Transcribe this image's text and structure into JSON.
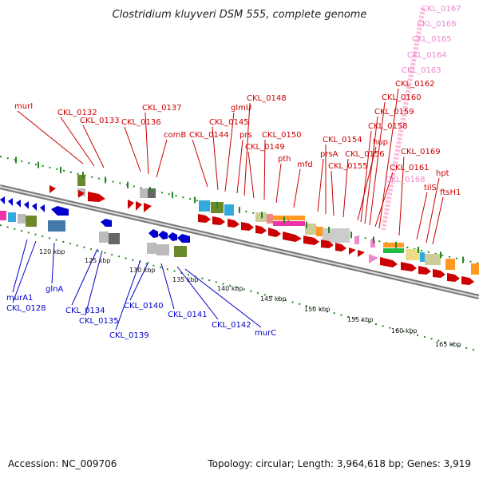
{
  "header": {
    "title": "Clostridium kluyveri DSM 555, complete genome"
  },
  "footer": {
    "accession": "Accession: NC_009706",
    "summary": "Topology: circular; Length: 3,964,618 bp; Genes: 3,919"
  },
  "colors": {
    "forward": "#cc0000",
    "reverse": "#0000cc",
    "rna": "#ee88cc",
    "backbone": "#777777",
    "ticks": "#228822"
  },
  "ruler": {
    "unit": "kbp",
    "ticks": [
      {
        "label": "120 kbp"
      },
      {
        "label": "125 kbp"
      },
      {
        "label": "130 kbp"
      },
      {
        "label": "135 kbp"
      },
      {
        "label": "140 kbp"
      },
      {
        "label": "145 kbp"
      },
      {
        "label": "150 kbp"
      },
      {
        "label": "155 kbp"
      },
      {
        "label": "160 kbp"
      },
      {
        "label": "165 kbp"
      }
    ]
  },
  "labels": {
    "forward": [
      "murI",
      "CKL_0132",
      "CKL_0133",
      "CKL_0136",
      "CKL_0137",
      "comB",
      "CKL_0144",
      "CKL_0145",
      "glmU",
      "prs",
      "CKL_0148",
      "CKL_0149",
      "CKL_0150",
      "pth",
      "mfd",
      "prsA",
      "CKL_0154",
      "CKL_0155",
      "CKL_0156",
      "hup",
      "CKL_0158",
      "CKL_0159",
      "CKL_0160",
      "CKL_0161",
      "CKL_0162",
      "CKL_0169",
      "tilS",
      "hpt",
      "ftsH1"
    ],
    "rna": [
      "CKL_0167",
      "CKL_0166",
      "CKL_0165",
      "CKL_0164",
      "CKL_0163",
      "CKL_0168"
    ],
    "reverse": [
      "murA1",
      "CKL_0128",
      "glnA",
      "CKL_0134",
      "CKL_0135",
      "CKL_0139",
      "CKL_0140",
      "CKL_0141",
      "CKL_0142",
      "murC"
    ]
  }
}
